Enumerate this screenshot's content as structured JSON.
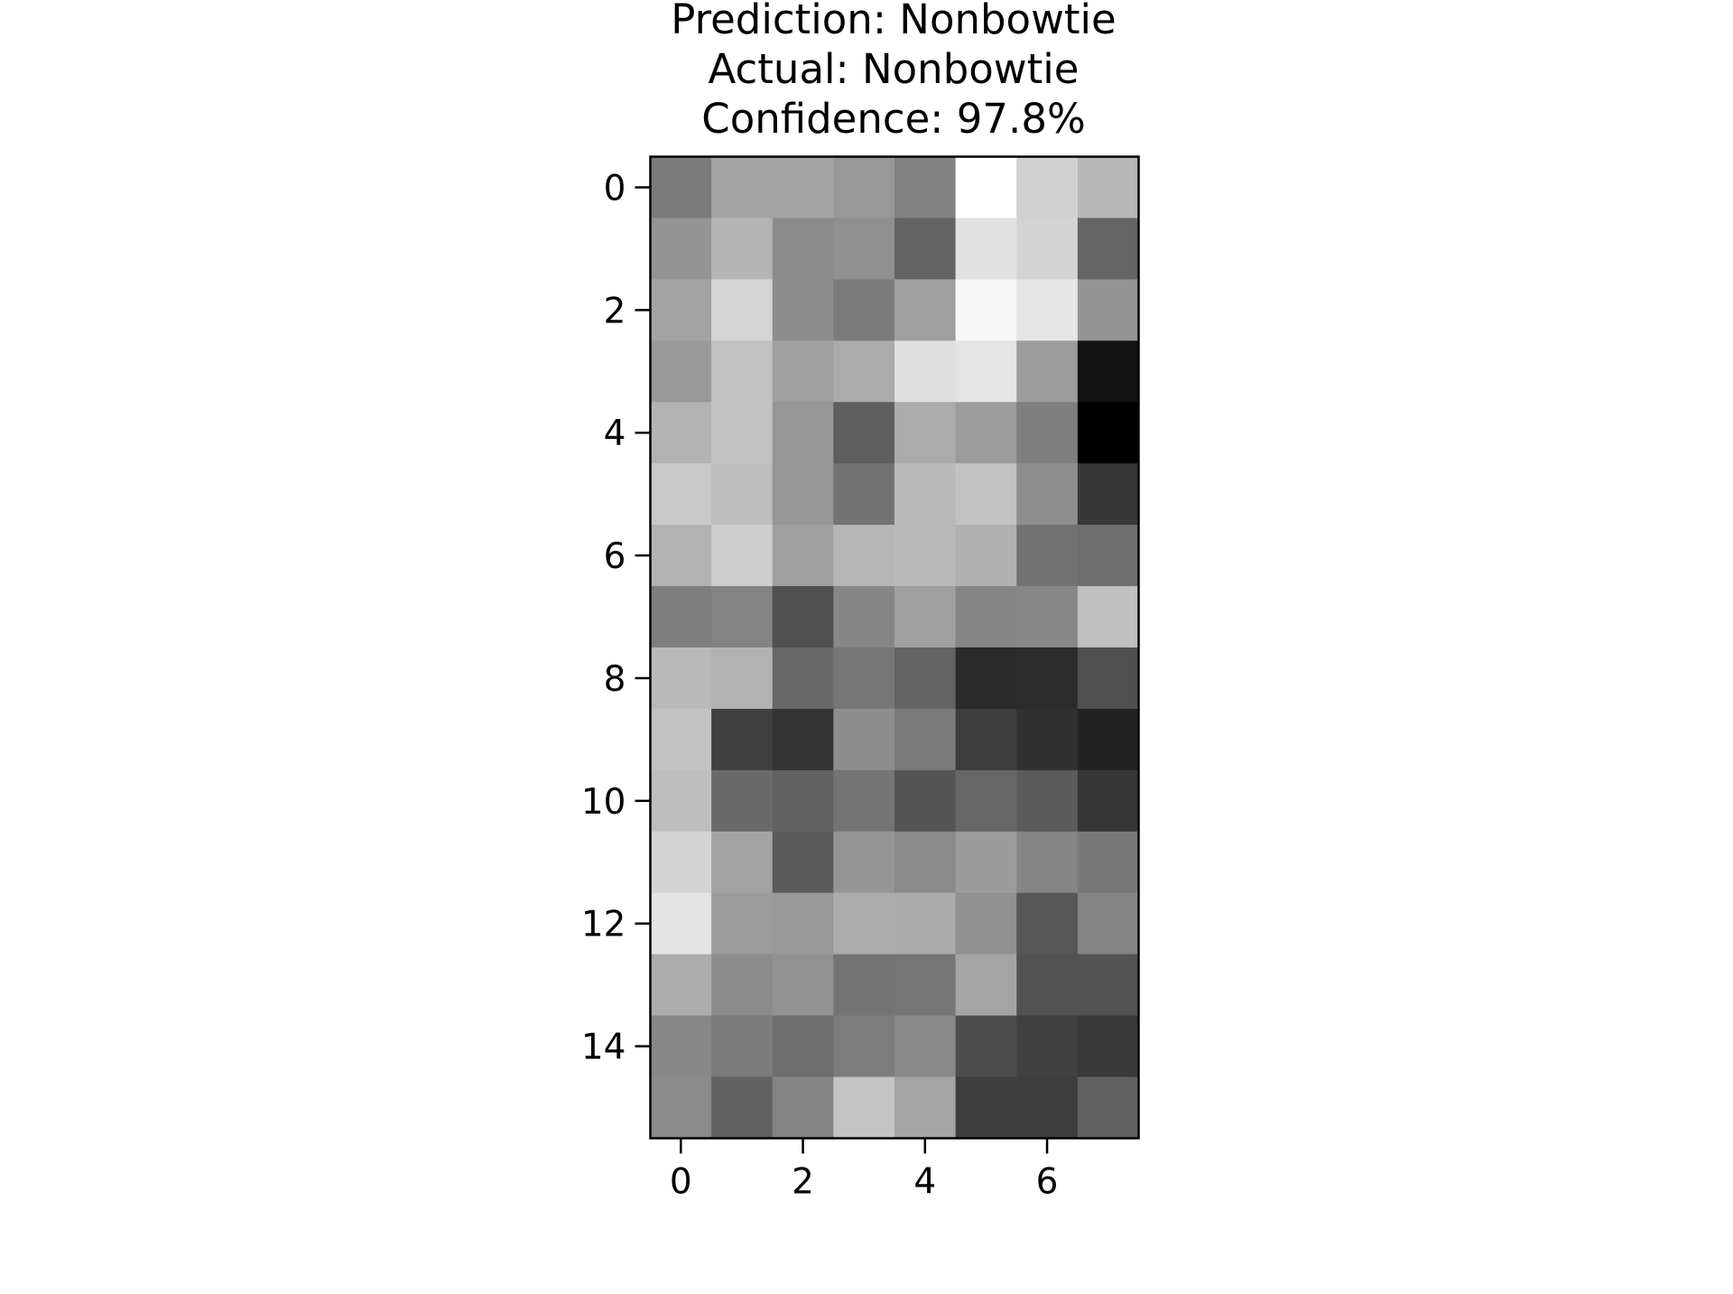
{
  "chart_data": {
    "type": "heatmap",
    "title": [
      "Prediction: Nonbowtie",
      "Actual: Nonbowtie",
      "Confidence: 97.8%"
    ],
    "colormap": "gray",
    "rows": 16,
    "cols": 8,
    "xticks": [
      0,
      2,
      4,
      6
    ],
    "yticks": [
      0,
      2,
      4,
      6,
      8,
      10,
      12,
      14
    ],
    "xtick_labels": [
      "0",
      "2",
      "4",
      "6"
    ],
    "ytick_labels": [
      "0",
      "2",
      "4",
      "6",
      "8",
      "10",
      "12",
      "14"
    ],
    "xlim": [
      -0.5,
      7.5
    ],
    "ylim": [
      15.5,
      -0.5
    ],
    "grid": false,
    "values": [
      [
        123,
        163,
        163,
        152,
        130,
        255,
        209,
        183
      ],
      [
        148,
        181,
        138,
        144,
        100,
        226,
        212,
        101
      ],
      [
        163,
        213,
        141,
        123,
        160,
        247,
        229,
        148
      ],
      [
        153,
        194,
        159,
        171,
        223,
        229,
        156,
        18
      ],
      [
        179,
        194,
        150,
        94,
        171,
        156,
        127,
        0
      ],
      [
        201,
        190,
        150,
        114,
        185,
        194,
        142,
        55
      ],
      [
        178,
        206,
        159,
        182,
        185,
        176,
        114,
        111
      ],
      [
        126,
        131,
        80,
        134,
        160,
        133,
        135,
        192
      ],
      [
        185,
        179,
        104,
        118,
        100,
        42,
        44,
        80
      ],
      [
        194,
        64,
        52,
        141,
        123,
        61,
        48,
        34
      ],
      [
        190,
        106,
        97,
        116,
        85,
        103,
        91,
        55
      ],
      [
        212,
        163,
        91,
        149,
        138,
        155,
        133,
        120
      ],
      [
        228,
        156,
        152,
        172,
        170,
        144,
        87,
        132
      ],
      [
        172,
        139,
        146,
        115,
        117,
        164,
        82,
        82
      ],
      [
        135,
        123,
        110,
        124,
        137,
        76,
        64,
        57
      ],
      [
        138,
        98,
        131,
        196,
        164,
        62,
        62,
        98
      ]
    ]
  }
}
